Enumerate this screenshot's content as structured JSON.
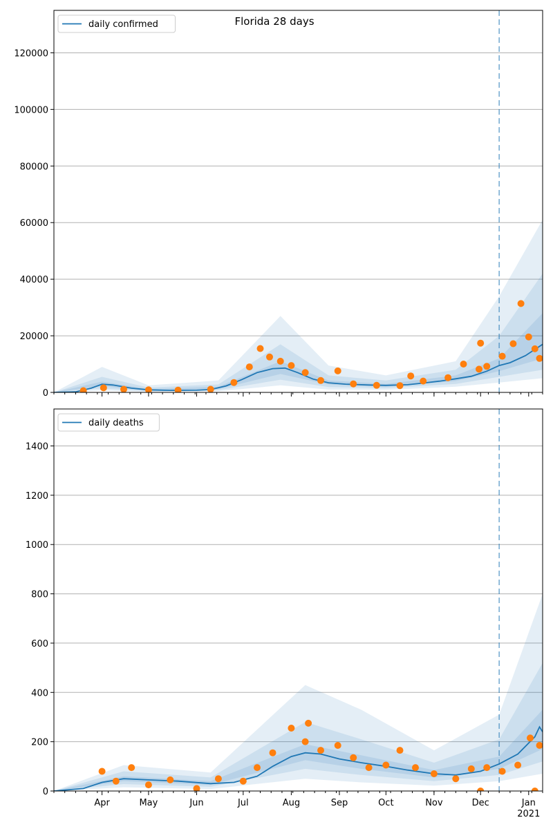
{
  "figure": {
    "title": "Florida 28 days"
  },
  "chart_data": [
    {
      "type": "line",
      "title": "Florida 28 days",
      "legend": [
        "daily confirmed"
      ],
      "legend_position": "top-left",
      "ylim": [
        0,
        135000
      ],
      "yticks": [
        0,
        20000,
        40000,
        60000,
        80000,
        100000,
        120000
      ],
      "xlim": [
        "2020-03-01",
        "2021-01-10"
      ],
      "forecast_start": "2020-12-13",
      "grid": "horizontal",
      "colors": {
        "line": "#1f77b4",
        "band": "#1f77b4",
        "observed": "#ff7f0e",
        "forecast_line": "#1f77b4"
      },
      "series": [
        {
          "name": "daily confirmed",
          "points": [
            [
              "2020-03-01",
              0
            ],
            [
              "2020-03-15",
              200
            ],
            [
              "2020-03-25",
              1500
            ],
            [
              "2020-04-01",
              2900
            ],
            [
              "2020-04-08",
              2600
            ],
            [
              "2020-04-20",
              1500
            ],
            [
              "2020-05-01",
              900
            ],
            [
              "2020-05-15",
              700
            ],
            [
              "2020-06-01",
              750
            ],
            [
              "2020-06-10",
              1000
            ],
            [
              "2020-06-20",
              2300
            ],
            [
              "2020-06-30",
              4500
            ],
            [
              "2020-07-10",
              7000
            ],
            [
              "2020-07-20",
              8400
            ],
            [
              "2020-07-28",
              8600
            ],
            [
              "2020-08-05",
              7000
            ],
            [
              "2020-08-15",
              4700
            ],
            [
              "2020-08-25",
              3400
            ],
            [
              "2020-09-05",
              2900
            ],
            [
              "2020-09-20",
              2600
            ],
            [
              "2020-10-01",
              2500
            ],
            [
              "2020-10-15",
              2700
            ],
            [
              "2020-10-25",
              3300
            ],
            [
              "2020-11-05",
              4000
            ],
            [
              "2020-11-15",
              4800
            ],
            [
              "2020-11-25",
              5700
            ],
            [
              "2020-12-05",
              7500
            ],
            [
              "2020-12-13",
              9500
            ],
            [
              "2020-12-20",
              10500
            ],
            [
              "2020-12-30",
              13000
            ],
            [
              "2021-01-10",
              17000
            ]
          ]
        }
      ],
      "observed": [
        [
          "2020-03-20",
          600
        ],
        [
          "2020-04-02",
          1600
        ],
        [
          "2020-04-15",
          1100
        ],
        [
          "2020-05-01",
          900
        ],
        [
          "2020-05-20",
          800
        ],
        [
          "2020-06-10",
          1100
        ],
        [
          "2020-06-25",
          3500
        ],
        [
          "2020-07-05",
          9000
        ],
        [
          "2020-07-12",
          15500
        ],
        [
          "2020-07-18",
          12500
        ],
        [
          "2020-07-25",
          11000
        ],
        [
          "2020-08-01",
          9500
        ],
        [
          "2020-08-10",
          7000
        ],
        [
          "2020-08-20",
          4200
        ],
        [
          "2020-08-31",
          7600
        ],
        [
          "2020-09-10",
          3000
        ],
        [
          "2020-09-25",
          2500
        ],
        [
          "2020-10-10",
          2400
        ],
        [
          "2020-10-17",
          5800
        ],
        [
          "2020-10-25",
          4000
        ],
        [
          "2020-11-10",
          5200
        ],
        [
          "2020-11-20",
          10000
        ],
        [
          "2020-11-30",
          8200
        ],
        [
          "2020-12-01",
          17400
        ],
        [
          "2020-12-05",
          9200
        ],
        [
          "2020-12-15",
          12800
        ],
        [
          "2020-12-22",
          17200
        ],
        [
          "2020-12-27",
          31400
        ],
        [
          "2021-01-01",
          19600
        ],
        [
          "2021-01-05",
          15400
        ],
        [
          "2021-01-08",
          12000
        ]
      ],
      "bands": {
        "inner": [
          [
            "2020-03-01",
            0,
            0
          ],
          [
            "2020-04-01",
            2200,
            3800
          ],
          [
            "2020-05-01",
            600,
            1200
          ],
          [
            "2020-06-15",
            1200,
            2000
          ],
          [
            "2020-07-25",
            6500,
            11000
          ],
          [
            "2020-08-25",
            2800,
            4200
          ],
          [
            "2020-10-01",
            2000,
            3000
          ],
          [
            "2020-11-15",
            4000,
            6000
          ],
          [
            "2020-12-13",
            7500,
            12000
          ],
          [
            "2021-01-10",
            12000,
            28000
          ]
        ],
        "mid": [
          [
            "2020-03-01",
            0,
            0
          ],
          [
            "2020-04-01",
            1400,
            5500
          ],
          [
            "2020-05-01",
            400,
            1700
          ],
          [
            "2020-06-15",
            800,
            2800
          ],
          [
            "2020-07-25",
            4500,
            17000
          ],
          [
            "2020-08-25",
            1900,
            6000
          ],
          [
            "2020-10-01",
            1500,
            4200
          ],
          [
            "2020-11-15",
            3000,
            8000
          ],
          [
            "2020-12-13",
            5500,
            20000
          ],
          [
            "2021-01-10",
            8000,
            42000
          ]
        ],
        "outer": [
          [
            "2020-03-01",
            0,
            0
          ],
          [
            "2020-04-01",
            700,
            9000
          ],
          [
            "2020-05-01",
            200,
            2500
          ],
          [
            "2020-06-15",
            400,
            4200
          ],
          [
            "2020-07-25",
            2500,
            27000
          ],
          [
            "2020-08-25",
            1000,
            9500
          ],
          [
            "2020-10-01",
            900,
            6000
          ],
          [
            "2020-11-15",
            2000,
            11000
          ],
          [
            "2020-12-13",
            3500,
            34000
          ],
          [
            "2021-01-10",
            5000,
            61000
          ]
        ]
      }
    },
    {
      "type": "line",
      "legend": [
        "daily deaths"
      ],
      "legend_position": "top-left",
      "ylim": [
        0,
        1550
      ],
      "yticks": [
        0,
        200,
        400,
        600,
        800,
        1000,
        1200,
        1400
      ],
      "xlim": [
        "2020-03-01",
        "2021-01-10"
      ],
      "xtick_labels": [
        "Apr",
        "May",
        "Jun",
        "Jul",
        "Aug",
        "Sep",
        "Oct",
        "Nov",
        "Dec",
        "Jan\n2021"
      ],
      "forecast_start": "2020-12-13",
      "grid": "horizontal",
      "colors": {
        "line": "#1f77b4",
        "band": "#1f77b4",
        "observed": "#ff7f0e"
      },
      "series": [
        {
          "name": "daily deaths",
          "points": [
            [
              "2020-03-01",
              0
            ],
            [
              "2020-03-20",
              10
            ],
            [
              "2020-04-01",
              35
            ],
            [
              "2020-04-15",
              50
            ],
            [
              "2020-05-01",
              45
            ],
            [
              "2020-05-20",
              40
            ],
            [
              "2020-06-10",
              30
            ],
            [
              "2020-06-25",
              35
            ],
            [
              "2020-07-10",
              60
            ],
            [
              "2020-07-20",
              100
            ],
            [
              "2020-08-01",
              140
            ],
            [
              "2020-08-10",
              155
            ],
            [
              "2020-08-20",
              150
            ],
            [
              "2020-09-01",
              130
            ],
            [
              "2020-09-15",
              115
            ],
            [
              "2020-10-01",
              100
            ],
            [
              "2020-10-15",
              85
            ],
            [
              "2020-11-01",
              70
            ],
            [
              "2020-11-15",
              65
            ],
            [
              "2020-12-01",
              80
            ],
            [
              "2020-12-13",
              110
            ],
            [
              "2020-12-25",
              150
            ],
            [
              "2021-01-05",
              220
            ],
            [
              "2021-01-08",
              260
            ],
            [
              "2021-01-10",
              240
            ]
          ]
        }
      ],
      "observed": [
        [
          "2020-04-01",
          80
        ],
        [
          "2020-04-10",
          40
        ],
        [
          "2020-04-20",
          95
        ],
        [
          "2020-05-01",
          25
        ],
        [
          "2020-05-15",
          45
        ],
        [
          "2020-06-01",
          10
        ],
        [
          "2020-06-15",
          50
        ],
        [
          "2020-07-01",
          40
        ],
        [
          "2020-07-10",
          95
        ],
        [
          "2020-07-20",
          155
        ],
        [
          "2020-08-01",
          255
        ],
        [
          "2020-08-10",
          200
        ],
        [
          "2020-08-12",
          275
        ],
        [
          "2020-08-20",
          165
        ],
        [
          "2020-08-31",
          185
        ],
        [
          "2020-09-10",
          135
        ],
        [
          "2020-09-20",
          95
        ],
        [
          "2020-10-01",
          105
        ],
        [
          "2020-10-10",
          165
        ],
        [
          "2020-10-20",
          95
        ],
        [
          "2020-11-01",
          70
        ],
        [
          "2020-11-15",
          50
        ],
        [
          "2020-11-25",
          90
        ],
        [
          "2020-12-01",
          0
        ],
        [
          "2020-12-05",
          95
        ],
        [
          "2020-12-15",
          80
        ],
        [
          "2020-12-25",
          105
        ],
        [
          "2021-01-02",
          215
        ],
        [
          "2021-01-05",
          0
        ],
        [
          "2021-01-08",
          185
        ]
      ],
      "bands": {
        "inner": [
          [
            "2020-03-01",
            0,
            0
          ],
          [
            "2020-04-15",
            40,
            60
          ],
          [
            "2020-06-10",
            25,
            40
          ],
          [
            "2020-08-10",
            125,
            190
          ],
          [
            "2020-09-15",
            90,
            145
          ],
          [
            "2020-11-01",
            55,
            85
          ],
          [
            "2020-12-13",
            90,
            140
          ],
          [
            "2021-01-10",
            170,
            330
          ]
        ],
        "mid": [
          [
            "2020-03-01",
            0,
            0
          ],
          [
            "2020-04-15",
            28,
            80
          ],
          [
            "2020-06-10",
            17,
            55
          ],
          [
            "2020-08-10",
            90,
            280
          ],
          [
            "2020-09-15",
            65,
            210
          ],
          [
            "2020-11-01",
            40,
            115
          ],
          [
            "2020-12-13",
            65,
            210
          ],
          [
            "2021-01-10",
            120,
            520
          ]
        ],
        "outer": [
          [
            "2020-03-01",
            0,
            0
          ],
          [
            "2020-04-15",
            15,
            105
          ],
          [
            "2020-06-10",
            8,
            75
          ],
          [
            "2020-08-10",
            50,
            430
          ],
          [
            "2020-09-15",
            35,
            330
          ],
          [
            "2020-11-01",
            22,
            165
          ],
          [
            "2020-12-13",
            40,
            310
          ],
          [
            "2021-01-10",
            70,
            800
          ]
        ]
      }
    }
  ]
}
